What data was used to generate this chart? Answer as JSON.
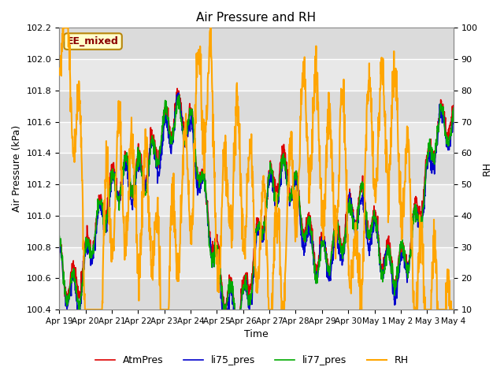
{
  "title": "Air Pressure and RH",
  "ylabel_left": "Air Pressure (kPa)",
  "ylabel_right": "RH",
  "xlabel": "Time",
  "ylim_left": [
    100.4,
    102.2
  ],
  "ylim_right": [
    10,
    100
  ],
  "annotation_text": "EE_mixed",
  "annotation_color": "#8B0000",
  "annotation_bg": "#FFFFCC",
  "annotation_border": "#B8860B",
  "bg_color": "#E8E8E8",
  "fig_bg": "#FFFFFF",
  "line_colors": {
    "AtmPres": "#DD0000",
    "li75_pres": "#0000CC",
    "li77_pres": "#00AA00",
    "RH": "#FFA500"
  },
  "line_widths": {
    "AtmPres": 1.2,
    "li75_pres": 1.2,
    "li77_pres": 1.2,
    "RH": 1.5
  },
  "legend_labels": [
    "AtmPres",
    "li75_pres",
    "li77_pres",
    "RH"
  ],
  "xtick_labels": [
    "Apr 19",
    "Apr 20",
    "Apr 21",
    "Apr 22",
    "Apr 23",
    "Apr 24",
    "Apr 25",
    "Apr 26",
    "Apr 27",
    "Apr 28",
    "Apr 29",
    "Apr 30",
    "May 1",
    "May 2",
    "May 3",
    "May 4"
  ],
  "num_points": 1500,
  "seed": 7
}
